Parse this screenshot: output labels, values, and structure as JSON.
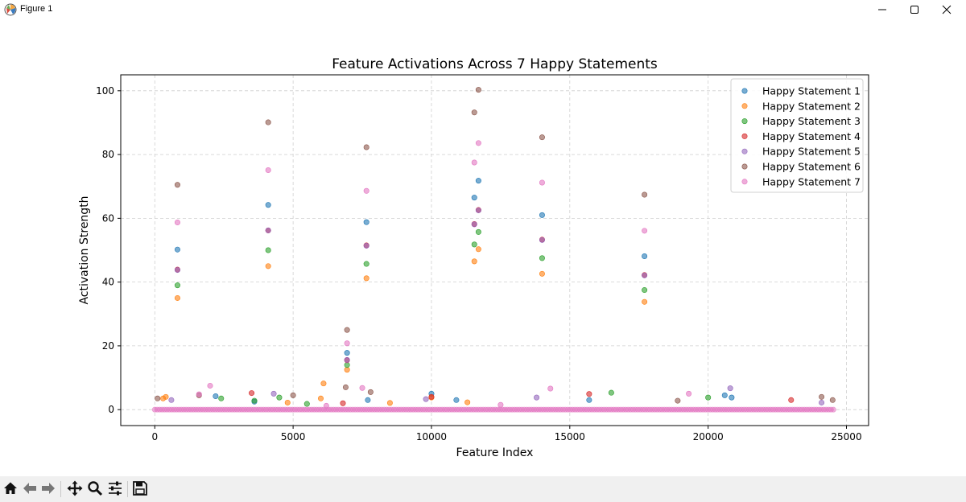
{
  "window": {
    "title": "Figure 1",
    "icons": {
      "app": "matplotlib-figure-icon",
      "minimize": "minimize-icon",
      "maximize": "maximize-icon",
      "close": "close-icon"
    }
  },
  "toolbar": {
    "items": [
      {
        "name": "home-icon"
      },
      {
        "name": "back-arrow-icon"
      },
      {
        "name": "forward-arrow-icon"
      },
      {
        "name": "pan-icon"
      },
      {
        "name": "zoom-icon"
      },
      {
        "name": "configure-subplots-icon"
      },
      {
        "name": "save-icon"
      }
    ]
  },
  "chart_data": {
    "type": "scatter",
    "title": "Feature Activations Across 7 Happy Statements",
    "xlabel": "Feature Index",
    "ylabel": "Activation Strength",
    "xlim": [
      -1230,
      25800
    ],
    "ylim": [
      -5,
      105
    ],
    "xticks": [
      0,
      5000,
      10000,
      15000,
      20000,
      25000
    ],
    "xtick_labels": [
      "0",
      "5000",
      "10000",
      "15000",
      "20000",
      "25000"
    ],
    "yticks": [
      0,
      20,
      40,
      60,
      80,
      100
    ],
    "ytick_labels": [
      "0",
      "20",
      "40",
      "60",
      "80",
      "100"
    ],
    "grid": true,
    "legend_position": "top-right",
    "baseline": {
      "x_range": [
        0,
        24576
      ],
      "y": 0
    },
    "series": [
      {
        "name": "Happy Statement 1",
        "color": "#1f77b4",
        "points": [
          [
            820,
            50.2
          ],
          [
            4100,
            64.2
          ],
          [
            6950,
            17.8
          ],
          [
            7650,
            58.8
          ],
          [
            11700,
            71.8
          ],
          [
            11550,
            66.5
          ],
          [
            14000,
            61
          ],
          [
            17700,
            48.1
          ],
          [
            2200,
            4.2
          ],
          [
            3600,
            2.5
          ],
          [
            7700,
            3
          ],
          [
            10000,
            5
          ],
          [
            10900,
            3
          ],
          [
            15700,
            3
          ],
          [
            20600,
            4.5
          ],
          [
            20850,
            3.8
          ]
        ]
      },
      {
        "name": "Happy Statement 2",
        "color": "#ff7f0e",
        "points": [
          [
            820,
            35
          ],
          [
            4100,
            45
          ],
          [
            6950,
            12.5
          ],
          [
            7650,
            41.2
          ],
          [
            11700,
            50.3
          ],
          [
            11550,
            46.5
          ],
          [
            14000,
            42.6
          ],
          [
            17700,
            33.8
          ],
          [
            300,
            3.5
          ],
          [
            400,
            4
          ],
          [
            4800,
            2.2
          ],
          [
            6100,
            8.2
          ],
          [
            6000,
            3.5
          ],
          [
            10000,
            3.8
          ],
          [
            11300,
            2.3
          ],
          [
            8500,
            2.1
          ]
        ]
      },
      {
        "name": "Happy Statement 3",
        "color": "#2ca02c",
        "points": [
          [
            820,
            39
          ],
          [
            4100,
            50
          ],
          [
            6950,
            14
          ],
          [
            7650,
            45.7
          ],
          [
            11700,
            55.7
          ],
          [
            11550,
            51.8
          ],
          [
            14000,
            47.5
          ],
          [
            17700,
            37.5
          ],
          [
            2400,
            3.5
          ],
          [
            3600,
            2.8
          ],
          [
            4500,
            3.8
          ],
          [
            16500,
            5.3
          ],
          [
            20000,
            3.8
          ],
          [
            5500,
            1.8
          ]
        ]
      },
      {
        "name": "Happy Statement 4",
        "color": "#d62728",
        "points": [
          [
            820,
            43.9
          ],
          [
            4100,
            56.2
          ],
          [
            6950,
            15.5
          ],
          [
            7650,
            51.5
          ],
          [
            11700,
            62.6
          ],
          [
            11550,
            58.2
          ],
          [
            14000,
            53.3
          ],
          [
            17700,
            42.2
          ],
          [
            3500,
            5.2
          ],
          [
            15700,
            4.9
          ],
          [
            23000,
            3
          ],
          [
            6800,
            2
          ],
          [
            10000,
            4
          ]
        ]
      },
      {
        "name": "Happy Statement 5",
        "color": "#9467bd",
        "points": [
          [
            820,
            43.8
          ],
          [
            4100,
            56.2
          ],
          [
            6950,
            15.6
          ],
          [
            7650,
            51.4
          ],
          [
            11700,
            62.5
          ],
          [
            11550,
            58.1
          ],
          [
            14000,
            53.2
          ],
          [
            17700,
            42.1
          ],
          [
            4300,
            5
          ],
          [
            9800,
            3.3
          ],
          [
            20800,
            6.7
          ],
          [
            24100,
            2.2
          ],
          [
            600,
            3
          ],
          [
            13800,
            3.8
          ]
        ]
      },
      {
        "name": "Happy Statement 6",
        "color": "#8c564b",
        "points": [
          [
            820,
            70.5
          ],
          [
            4100,
            90.1
          ],
          [
            6950,
            25
          ],
          [
            7650,
            82.3
          ],
          [
            11700,
            100.3
          ],
          [
            11550,
            93.2
          ],
          [
            14000,
            85.4
          ],
          [
            17700,
            67.4
          ],
          [
            100,
            3.5
          ],
          [
            5000,
            4.5
          ],
          [
            6900,
            7
          ],
          [
            7800,
            5.5
          ],
          [
            24500,
            3
          ],
          [
            24100,
            4
          ],
          [
            18900,
            2.8
          ],
          [
            1600,
            4.5
          ]
        ]
      },
      {
        "name": "Happy Statement 7",
        "color": "#e377c2",
        "points": [
          [
            820,
            58.7
          ],
          [
            4100,
            75.1
          ],
          [
            6950,
            20.8
          ],
          [
            7650,
            68.6
          ],
          [
            11700,
            83.6
          ],
          [
            11550,
            77.5
          ],
          [
            14000,
            71.2
          ],
          [
            17700,
            56.1
          ],
          [
            2000,
            7.5
          ],
          [
            1600,
            4.8
          ],
          [
            7500,
            6.8
          ],
          [
            14300,
            6.6
          ],
          [
            19300,
            5
          ],
          [
            6200,
            1.2
          ],
          [
            12500,
            1.5
          ]
        ]
      }
    ]
  }
}
